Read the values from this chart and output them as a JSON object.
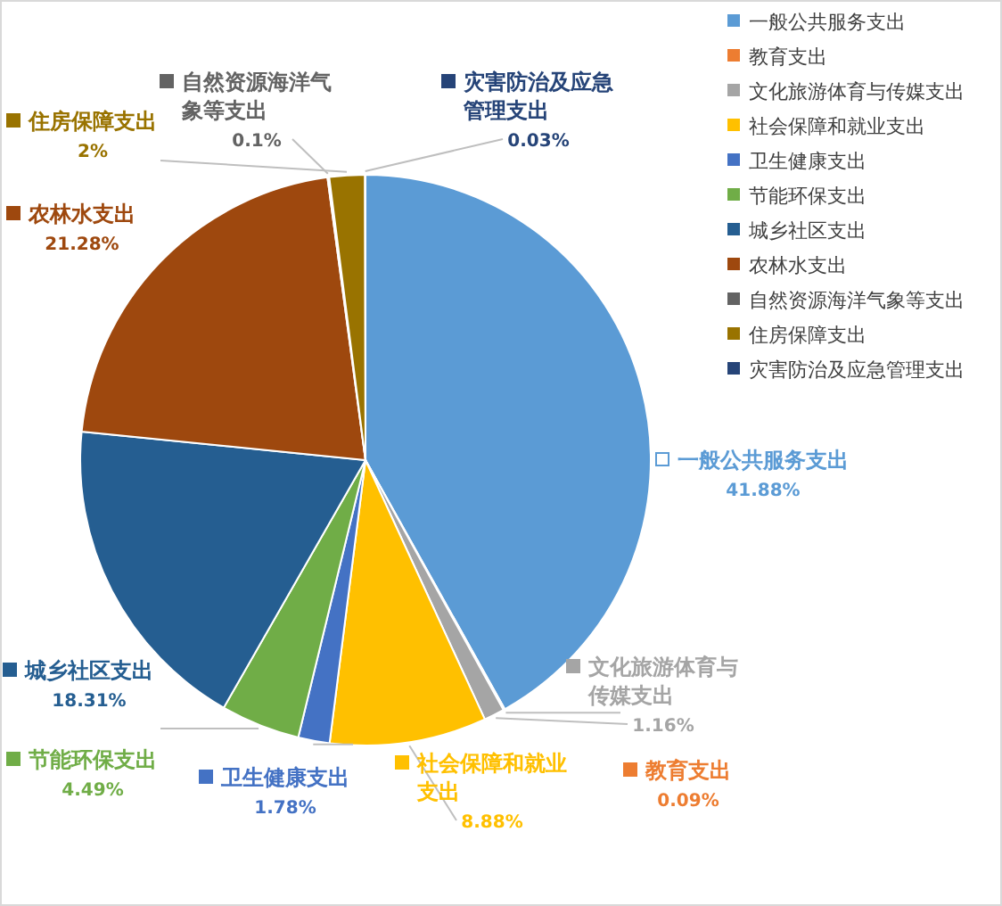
{
  "chart_data": {
    "type": "pie",
    "categories": [
      "一般公共服务支出",
      "教育支出",
      "文化旅游体育与传媒支出",
      "社会保障和就业支出",
      "卫生健康支出",
      "节能环保支出",
      "城乡社区支出",
      "农林水支出",
      "自然资源海洋气象等支出",
      "住房保障支出",
      "灾害防治及应急管理支出"
    ],
    "values": [
      41.88,
      0.09,
      1.16,
      8.88,
      1.78,
      4.49,
      18.31,
      21.28,
      0.1,
      2,
      0.03
    ],
    "colors": [
      "#5b9bd5",
      "#ed7d31",
      "#a5a5a5",
      "#ffc000",
      "#4472c4",
      "#70ad47",
      "#255e91",
      "#9e480e",
      "#636363",
      "#997300",
      "#264478"
    ],
    "data_labels": true,
    "value_labels": [
      "41.88%",
      "0.09%",
      "1.16%",
      "8.88%",
      "1.78%",
      "4.49%",
      "18.31%",
      "21.28%",
      "0.1%",
      "2%",
      "0.03%"
    ],
    "legend": "top right"
  }
}
